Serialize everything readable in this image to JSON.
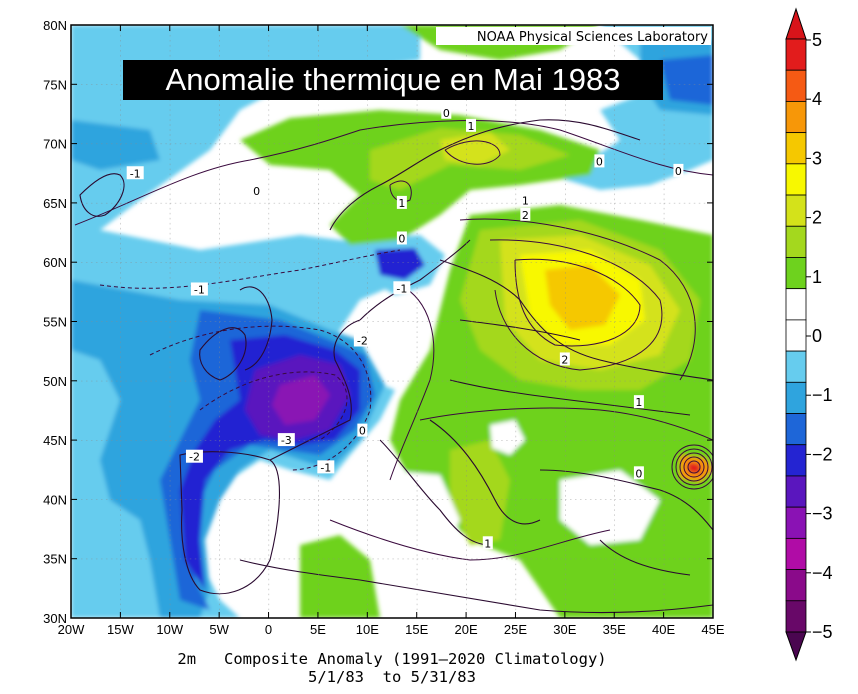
{
  "map": {
    "title": "Anomalie thermique en Mai 1983",
    "credit": "NOAA Physical Sciences Laboratory",
    "caption_line1": "2m   Composite Anomaly (1991–2020 Climatology)",
    "caption_line2": "5/1/83  to 5/31/83",
    "lat_ticks": [
      "80N",
      "75N",
      "70N",
      "65N",
      "60N",
      "55N",
      "50N",
      "45N",
      "40N",
      "35N",
      "30N"
    ],
    "lon_ticks": [
      "20W",
      "15W",
      "10W",
      "5W",
      "0",
      "5E",
      "10E",
      "15E",
      "20E",
      "25E",
      "30E",
      "35E",
      "40E",
      "45E"
    ],
    "contour_labels": [
      {
        "text": "0",
        "lon": -1.2,
        "lat": 66.0
      },
      {
        "text": "0",
        "lon": 18.0,
        "lat": 72.6
      },
      {
        "text": "1",
        "lon": 20.5,
        "lat": 71.5
      },
      {
        "text": "0",
        "lon": 33.5,
        "lat": 68.5
      },
      {
        "text": "0",
        "lon": 41.5,
        "lat": 67.7
      },
      {
        "text": "-1",
        "lon": -13.5,
        "lat": 67.5
      },
      {
        "text": "1",
        "lon": 13.5,
        "lat": 65.0
      },
      {
        "text": "0",
        "lon": 13.5,
        "lat": 62.0
      },
      {
        "text": "1",
        "lon": 26.0,
        "lat": 65.2
      },
      {
        "text": "2",
        "lon": 26.0,
        "lat": 64.0
      },
      {
        "text": "-1",
        "lon": -7.0,
        "lat": 57.7
      },
      {
        "text": "-1",
        "lon": 13.5,
        "lat": 57.8
      },
      {
        "text": "-2",
        "lon": 9.5,
        "lat": 53.4
      },
      {
        "text": "2",
        "lon": 30.0,
        "lat": 51.8
      },
      {
        "text": "1",
        "lon": 37.5,
        "lat": 48.2
      },
      {
        "text": "0",
        "lon": 9.5,
        "lat": 45.8
      },
      {
        "text": "-3",
        "lon": 1.8,
        "lat": 45.0
      },
      {
        "text": "-2",
        "lon": -7.5,
        "lat": 43.6
      },
      {
        "text": "-1",
        "lon": 5.8,
        "lat": 42.7
      },
      {
        "text": "0",
        "lon": 37.5,
        "lat": 42.2
      },
      {
        "text": "1",
        "lon": 22.2,
        "lat": 36.3
      }
    ]
  },
  "colorbar": {
    "labels": [
      "5",
      "4",
      "3",
      "2",
      "1",
      "0",
      "−1",
      "−2",
      "−3",
      "−4",
      "−5"
    ],
    "colors": [
      "#e21c1c",
      "#f55a14",
      "#f79708",
      "#f5c800",
      "#f8f800",
      "#d4e21a",
      "#a4d81e",
      "#6ed21e",
      "#ffffff",
      "#ffffff",
      "#66ccee",
      "#2fa4de",
      "#1e66d8",
      "#2424d2",
      "#5a16be",
      "#8a12b4",
      "#b00ca6",
      "#8a0a8a",
      "#680868"
    ],
    "tip_top": "#d8141a",
    "tip_bottom": "#4a0650"
  }
}
